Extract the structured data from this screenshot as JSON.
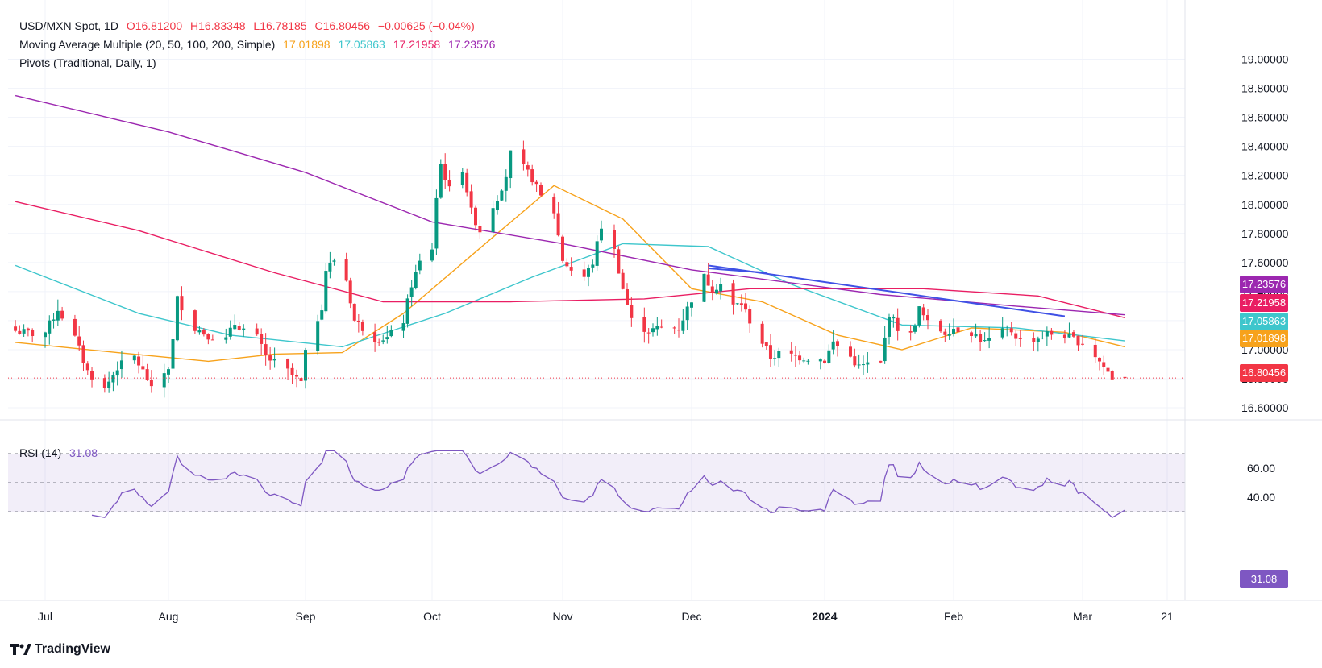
{
  "header": {
    "symbol_line": {
      "title": "USD/MXN Spot, 1D",
      "open": "O16.81200",
      "high": "H16.83348",
      "low": "L16.78185",
      "close": "C16.80456",
      "change": "−0.00625 (−0.04%)"
    },
    "ma_line": {
      "title": "Moving Average Multiple (20, 50, 100, 200, Simple)",
      "ma20": "17.01898",
      "ma50": "17.05863",
      "ma100": "17.21958",
      "ma200": "17.23576"
    },
    "pivots_line": {
      "title": "Pivots (Traditional, Daily, 1)"
    },
    "rsi_line": {
      "title": "RSI (14)",
      "value": "31.08"
    }
  },
  "colors": {
    "up": "#089981",
    "down": "#f23645",
    "ma20": "#f7a21b",
    "ma50": "#3ec6cc",
    "ma100": "#e91e63",
    "ma200": "#9c27b0",
    "trendline": "#3f51e5",
    "rsi": "#7e57c2"
  },
  "price_tags": [
    {
      "label": "17.23576",
      "color": "#9c27b0"
    },
    {
      "label": "17.21958",
      "color": "#e91e63"
    },
    {
      "label": "17.05863",
      "color": "#3ec6cc"
    },
    {
      "label": "17.01898",
      "color": "#f7a21b"
    },
    {
      "label": "16.80456",
      "color": "#f23645"
    }
  ],
  "rsi_tag": {
    "label": "31.08",
    "color": "#7e57c2"
  },
  "branding": {
    "text": "TradingView",
    "icon": "tradingview-logo-icon"
  },
  "chart_data": [
    {
      "type": "candlestick",
      "title": "USD/MXN Spot, 1D",
      "ylim": [
        16.45,
        19.0
      ],
      "y_ticks": [
        "16.60000",
        "16.80000",
        "17.00000",
        "17.20000",
        "17.40000",
        "17.60000",
        "17.80000",
        "18.00000",
        "18.20000",
        "18.40000",
        "18.60000",
        "18.80000",
        "19.00000"
      ],
      "x_ticks": [
        "Jul",
        "Aug",
        "Sep",
        "Oct",
        "Nov",
        "Dec",
        "2024",
        "Feb",
        "Mar",
        "21"
      ],
      "x_tick_dates": [
        "2023-07-03",
        "2023-08-01",
        "2023-09-01",
        "2023-10-02",
        "2023-11-01",
        "2023-12-01",
        "2024-01-02",
        "2024-02-01",
        "2024-03-01",
        "2024-03-21"
      ],
      "grid": true,
      "last_close": 16.80456,
      "close_anchors": [
        [
          "2023-06-26",
          17.13
        ],
        [
          "2023-06-30",
          17.11
        ],
        [
          "2023-07-03",
          17.12
        ],
        [
          "2023-07-06",
          17.28
        ],
        [
          "2023-07-10",
          17.08
        ],
        [
          "2023-07-13",
          16.85
        ],
        [
          "2023-07-17",
          16.73
        ],
        [
          "2023-07-20",
          16.88
        ],
        [
          "2023-07-24",
          16.95
        ],
        [
          "2023-07-27",
          16.8
        ],
        [
          "2023-07-28",
          16.72
        ],
        [
          "2023-08-01",
          16.88
        ],
        [
          "2023-08-02",
          17.06
        ],
        [
          "2023-08-03",
          17.35
        ],
        [
          "2023-08-07",
          17.15
        ],
        [
          "2023-08-10",
          17.1
        ],
        [
          "2023-08-14",
          17.07
        ],
        [
          "2023-08-16",
          17.18
        ],
        [
          "2023-08-21",
          17.08
        ],
        [
          "2023-08-23",
          16.95
        ],
        [
          "2023-08-28",
          16.85
        ],
        [
          "2023-08-31",
          16.77
        ],
        [
          "2023-09-01",
          16.97
        ],
        [
          "2023-09-05",
          17.3
        ],
        [
          "2023-09-06",
          17.55
        ],
        [
          "2023-09-08",
          17.62
        ],
        [
          "2023-09-11",
          17.48
        ],
        [
          "2023-09-13",
          17.2
        ],
        [
          "2023-09-18",
          17.08
        ],
        [
          "2023-09-21",
          17.08
        ],
        [
          "2023-09-25",
          17.2
        ],
        [
          "2023-09-27",
          17.45
        ],
        [
          "2023-09-29",
          17.6
        ],
        [
          "2023-10-02",
          17.7
        ],
        [
          "2023-10-03",
          18.05
        ],
        [
          "2023-10-04",
          18.28
        ],
        [
          "2023-10-06",
          18.1
        ],
        [
          "2023-10-09",
          18.25
        ],
        [
          "2023-10-11",
          17.95
        ],
        [
          "2023-10-13",
          17.82
        ],
        [
          "2023-10-17",
          18.05
        ],
        [
          "2023-10-19",
          18.2
        ],
        [
          "2023-10-20",
          18.35
        ],
        [
          "2023-10-23",
          18.25
        ],
        [
          "2023-10-25",
          18.18
        ],
        [
          "2023-10-27",
          18.05
        ],
        [
          "2023-10-30",
          17.95
        ],
        [
          "2023-11-01",
          17.62
        ],
        [
          "2023-11-03",
          17.55
        ],
        [
          "2023-11-06",
          17.5
        ],
        [
          "2023-11-08",
          17.6
        ],
        [
          "2023-11-10",
          17.85
        ],
        [
          "2023-11-13",
          17.68
        ],
        [
          "2023-11-15",
          17.42
        ],
        [
          "2023-11-17",
          17.2
        ],
        [
          "2023-11-21",
          17.13
        ],
        [
          "2023-11-24",
          17.15
        ],
        [
          "2023-11-28",
          17.15
        ],
        [
          "2023-12-01",
          17.35
        ],
        [
          "2023-12-04",
          17.5
        ],
        [
          "2023-12-06",
          17.42
        ],
        [
          "2023-12-08",
          17.45
        ],
        [
          "2023-12-11",
          17.3
        ],
        [
          "2023-12-13",
          17.32
        ],
        [
          "2023-12-15",
          17.2
        ],
        [
          "2023-12-18",
          17.05
        ],
        [
          "2023-12-20",
          16.95
        ],
        [
          "2023-12-22",
          16.97
        ],
        [
          "2023-12-27",
          16.95
        ],
        [
          "2024-01-02",
          16.93
        ],
        [
          "2024-01-04",
          17.05
        ],
        [
          "2024-01-08",
          16.95
        ],
        [
          "2024-01-10",
          16.88
        ],
        [
          "2024-01-12",
          16.9
        ],
        [
          "2024-01-15",
          16.9
        ],
        [
          "2024-01-17",
          17.25
        ],
        [
          "2024-01-19",
          17.15
        ],
        [
          "2024-01-22",
          17.1
        ],
        [
          "2024-01-24",
          17.28
        ],
        [
          "2024-01-26",
          17.18
        ],
        [
          "2024-01-30",
          17.12
        ],
        [
          "2024-02-01",
          17.15
        ],
        [
          "2024-02-05",
          17.12
        ],
        [
          "2024-02-08",
          17.05
        ],
        [
          "2024-02-12",
          17.12
        ],
        [
          "2024-02-14",
          17.13
        ],
        [
          "2024-02-16",
          17.06
        ],
        [
          "2024-02-20",
          17.08
        ],
        [
          "2024-02-22",
          17.11
        ],
        [
          "2024-02-26",
          17.1
        ],
        [
          "2024-02-28",
          17.07
        ],
        [
          "2024-03-01",
          17.05
        ],
        [
          "2024-03-04",
          16.96
        ],
        [
          "2024-03-06",
          16.88
        ],
        [
          "2024-03-08",
          16.81
        ],
        [
          "2024-03-11",
          16.8
        ]
      ],
      "series": [
        {
          "name": "20",
          "kind": "sma",
          "period": 20,
          "last_value": 17.01898
        },
        {
          "name": "50",
          "kind": "sma",
          "period": 50,
          "last_value": 17.05863
        },
        {
          "name": "100",
          "kind": "sma",
          "period": 100,
          "last_value": 17.21958
        },
        {
          "name": "200",
          "kind": "sma",
          "period": 200,
          "last_value": 17.23576
        }
      ],
      "trendlines": [
        {
          "from": [
            "2023-12-05",
            17.58
          ],
          "to": [
            "2024-02-26",
            17.23
          ]
        },
        {
          "from": [
            "2023-12-05",
            17.56
          ],
          "to": [
            "2023-12-19",
            17.53
          ]
        }
      ]
    },
    {
      "type": "line",
      "title": "RSI (14)",
      "ylim": [
        25,
        72
      ],
      "y_ticks": [
        "40.00",
        "60.00"
      ],
      "bands": [
        30,
        50,
        70
      ],
      "last_value": 31.08,
      "series": [
        {
          "name": "RSI (14)",
          "values_from": "close_anchors"
        }
      ]
    }
  ]
}
